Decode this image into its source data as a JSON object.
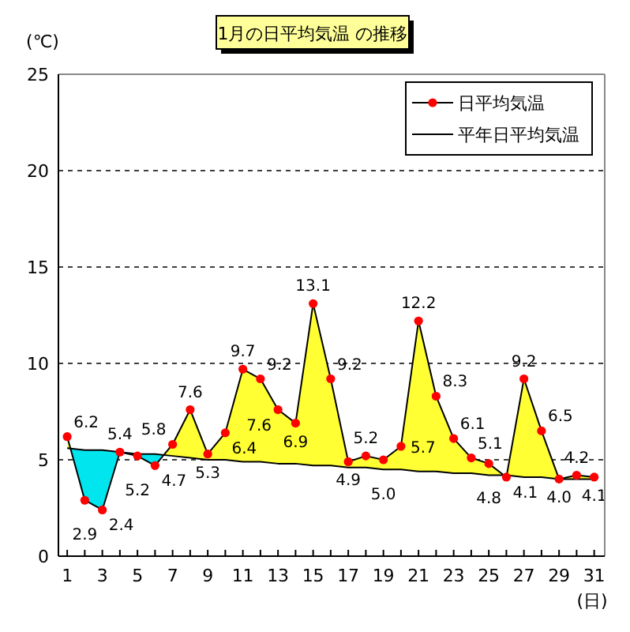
{
  "chart_data": {
    "type": "line",
    "title": "1月の日平均気温 の推移",
    "xlabel": "(日)",
    "ylabel": "(℃)",
    "x": [
      1,
      2,
      3,
      4,
      5,
      6,
      7,
      8,
      9,
      10,
      11,
      12,
      13,
      14,
      15,
      16,
      17,
      18,
      19,
      20,
      21,
      22,
      23,
      24,
      25,
      26,
      27,
      28,
      29,
      30,
      31
    ],
    "series": [
      {
        "name": "日平均気温",
        "color": "#ff0000",
        "marker": "circle",
        "values": [
          6.2,
          2.9,
          2.4,
          5.4,
          5.2,
          4.7,
          5.8,
          7.6,
          5.3,
          6.4,
          9.7,
          9.2,
          7.6,
          6.9,
          13.1,
          9.2,
          4.9,
          5.2,
          5.0,
          5.7,
          12.2,
          8.3,
          6.1,
          5.1,
          4.8,
          4.1,
          9.2,
          6.5,
          4.0,
          4.2,
          4.1
        ],
        "value_labels": [
          "6.2",
          "2.9",
          "2.4",
          "5.4",
          "5.2",
          "4.7",
          "5.8",
          "7.6",
          "5.3",
          "6.4",
          "9.7",
          "9.2",
          "7.6",
          "6.9",
          "13.1",
          "9.2",
          "4.9",
          "5.2",
          "5.0",
          "5.7",
          "12.2",
          "8.3",
          "6.1",
          "5.1",
          "4.8",
          "4.1",
          "9.2",
          "6.5",
          "4.0",
          "4.2",
          "4.1"
        ]
      },
      {
        "name": "平年日平均気温",
        "color": "#000000",
        "marker": "none",
        "values": [
          5.6,
          5.5,
          5.5,
          5.4,
          5.3,
          5.3,
          5.2,
          5.1,
          5.0,
          5.0,
          4.9,
          4.9,
          4.8,
          4.8,
          4.7,
          4.7,
          4.6,
          4.6,
          4.5,
          4.5,
          4.4,
          4.4,
          4.3,
          4.3,
          4.2,
          4.2,
          4.1,
          4.1,
          4.0,
          4.0,
          4.0
        ]
      }
    ],
    "xlim": [
      0.5,
      31.6
    ],
    "xticks": [
      1,
      {
        "value": 2,
        "label": null
      },
      3,
      {
        "value": 4,
        "label": null
      },
      5,
      {
        "value": 6,
        "label": null
      },
      7,
      {
        "value": 8,
        "label": null
      },
      9,
      {
        "value": 10,
        "label": null
      },
      11,
      {
        "value": 12,
        "label": null
      },
      13,
      {
        "value": 14,
        "label": null
      },
      15,
      {
        "value": 16,
        "label": null
      },
      17,
      {
        "value": 18,
        "label": null
      },
      19,
      {
        "value": 20,
        "label": null
      },
      21,
      {
        "value": 22,
        "label": null
      },
      23,
      {
        "value": 24,
        "label": null
      },
      25,
      {
        "value": 26,
        "label": null
      },
      27,
      {
        "value": 28,
        "label": null
      },
      29,
      {
        "value": 30,
        "label": null
      },
      31
    ],
    "ylim": [
      0,
      25
    ],
    "yticks": [
      0,
      5,
      10,
      15,
      20,
      25
    ],
    "grid": "y",
    "line_style": "solid",
    "legend": "top right"
  }
}
